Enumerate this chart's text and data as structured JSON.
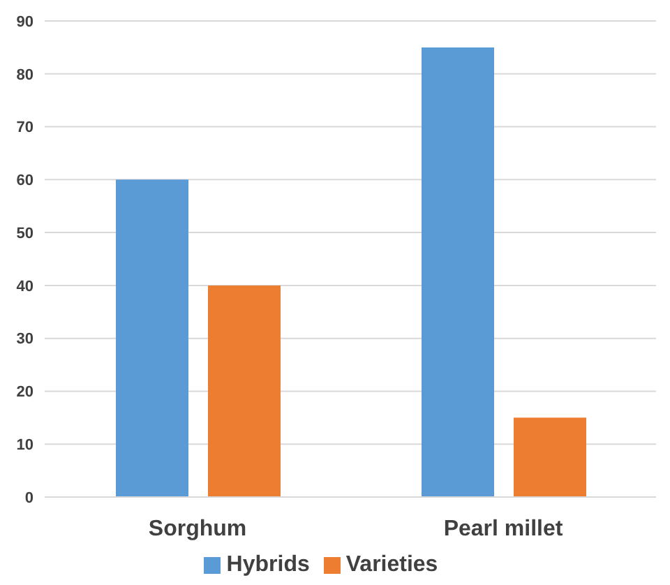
{
  "chart_data": {
    "type": "bar",
    "categories": [
      "Sorghum",
      "Pearl millet"
    ],
    "series": [
      {
        "name": "Hybrids",
        "color": "#5b9bd5",
        "values": [
          60,
          85
        ]
      },
      {
        "name": "Varieties",
        "color": "#ed7d31",
        "values": [
          40,
          15
        ]
      }
    ],
    "ylim": [
      0,
      90
    ],
    "yticks": [
      0,
      10,
      20,
      30,
      40,
      50,
      60,
      70,
      80,
      90
    ],
    "grid": "y",
    "legend": "bottom"
  }
}
